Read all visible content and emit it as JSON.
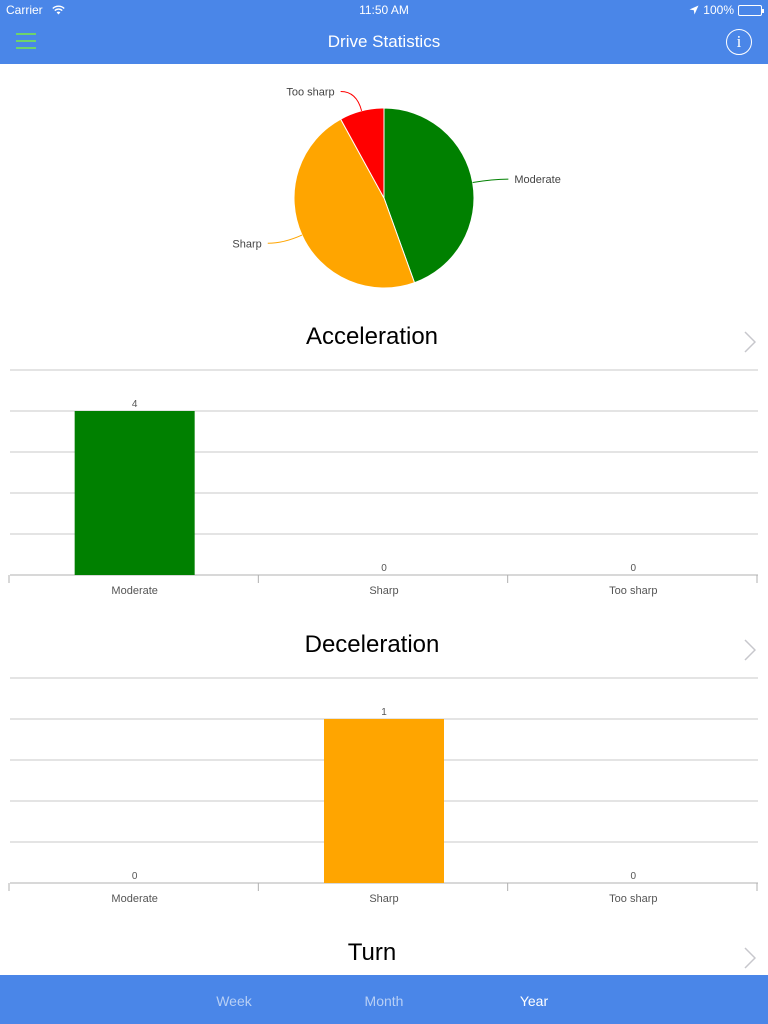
{
  "status": {
    "carrier": "Carrier",
    "time": "11:50 AM",
    "battery": "100%"
  },
  "header": {
    "title": "Drive Statistics",
    "info_label": "i"
  },
  "colors": {
    "moderate": "#008000",
    "sharp": "#ffa500",
    "too_sharp": "#ff0000",
    "accent": "#4a86e8"
  },
  "pie": {
    "labels": [
      "Moderate",
      "Sharp",
      "Too sharp"
    ],
    "values": [
      44.5,
      47.5,
      8.0
    ],
    "colors": [
      "#008000",
      "#ffa500",
      "#ff0000"
    ]
  },
  "sections": [
    {
      "title": "Acceleration"
    },
    {
      "title": "Deceleration"
    },
    {
      "title": "Turn"
    }
  ],
  "chart_data": [
    {
      "type": "pie",
      "categories": [
        "Moderate",
        "Sharp",
        "Too sharp"
      ],
      "values": [
        44.5,
        47.5,
        8.0
      ],
      "colors": [
        "#008000",
        "#ffa500",
        "#ff0000"
      ]
    },
    {
      "type": "bar",
      "title": "Acceleration",
      "categories": [
        "Moderate",
        "Sharp",
        "Too sharp"
      ],
      "values": [
        4,
        0,
        0
      ],
      "colors": [
        "#008000",
        "#ffa500",
        "#ff0000"
      ],
      "ylim": [
        0,
        5
      ],
      "grid": true
    },
    {
      "type": "bar",
      "title": "Deceleration",
      "categories": [
        "Moderate",
        "Sharp",
        "Too sharp"
      ],
      "values": [
        0,
        1,
        0
      ],
      "colors": [
        "#008000",
        "#ffa500",
        "#ff0000"
      ],
      "ylim": [
        0,
        1.25
      ],
      "grid": true
    }
  ],
  "tabs": [
    {
      "label": "Week",
      "active": false
    },
    {
      "label": "Month",
      "active": false
    },
    {
      "label": "Year",
      "active": true
    }
  ]
}
